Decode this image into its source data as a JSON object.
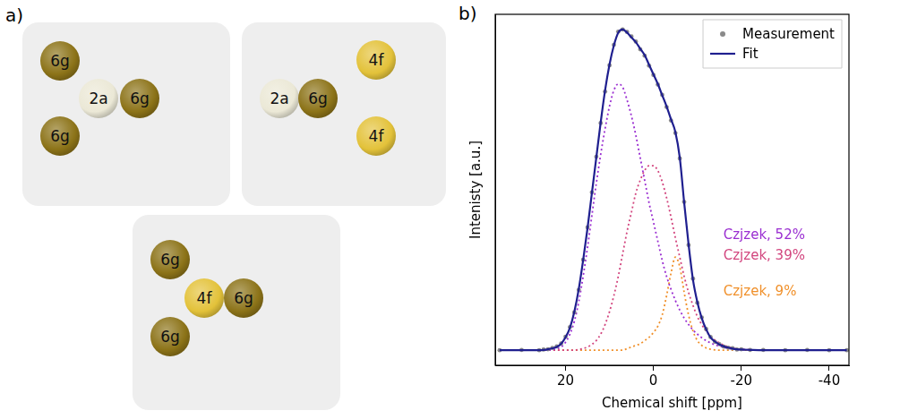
{
  "panel_a": {
    "label": "a)",
    "clusters": [
      {
        "atoms": [
          {
            "label": "6g",
            "color": "#8c7318"
          },
          {
            "label": "2a",
            "color": "#ebe8d6"
          },
          {
            "label": "6g",
            "color": "#8c7318"
          },
          {
            "label": "6g",
            "color": "#8c7318"
          }
        ]
      },
      {
        "atoms": [
          {
            "label": "4f",
            "color": "#e3c23a"
          },
          {
            "label": "2a",
            "color": "#ebe8d6"
          },
          {
            "label": "6g",
            "color": "#8c7318"
          },
          {
            "label": "4f",
            "color": "#e3c23a"
          }
        ]
      },
      {
        "atoms": [
          {
            "label": "6g",
            "color": "#8c7318"
          },
          {
            "label": "4f",
            "color": "#e3c23a"
          },
          {
            "label": "6g",
            "color": "#8c7318"
          },
          {
            "label": "6g",
            "color": "#8c7318"
          }
        ]
      }
    ]
  },
  "chart_data": {
    "type": "line",
    "label": "b)",
    "x_label": "Chemical shift [ppm]",
    "y_label": "Intenisty [a.u.]",
    "x": [
      35,
      30,
      26,
      25,
      24,
      23,
      22,
      21,
      20,
      19,
      18,
      17,
      16,
      15,
      14,
      13,
      12,
      11,
      10,
      9,
      8,
      7,
      6,
      5,
      4,
      3,
      2,
      1,
      0,
      -1,
      -2,
      -3,
      -4,
      -5,
      -6,
      -7,
      -8,
      -9,
      -10,
      -11,
      -12,
      -13,
      -14,
      -15,
      -16,
      -17,
      -18,
      -19,
      -20,
      -22,
      -25,
      -30,
      -35,
      -40,
      -44
    ],
    "xlim": [
      36,
      -44.5
    ],
    "xticks": [
      20,
      0,
      -20,
      -40
    ],
    "ylim": [
      -0.047,
      1.047
    ],
    "tick_labels": "x",
    "grid": false,
    "legend": "upper right",
    "series": [
      {
        "name": "Measurement",
        "color": "#8a8a8a",
        "marker": "circle",
        "line_style": "none",
        "values": [
          0,
          0.001,
          0,
          0.002,
          0.003,
          0.007,
          0.012,
          0.021,
          0.042,
          0.072,
          0.118,
          0.188,
          0.282,
          0.383,
          0.492,
          0.603,
          0.708,
          0.806,
          0.888,
          0.952,
          0.993,
          1.0,
          0.992,
          0.978,
          0.962,
          0.938,
          0.918,
          0.887,
          0.858,
          0.828,
          0.796,
          0.758,
          0.716,
          0.677,
          0.598,
          0.462,
          0.328,
          0.223,
          0.148,
          0.102,
          0.066,
          0.041,
          0.026,
          0.019,
          0.011,
          0.008,
          0.006,
          0.002,
          0.003,
          0.001,
          0.001,
          0,
          0.001,
          0,
          0
        ]
      },
      {
        "name": "Fit",
        "color": "#1f1f8f",
        "line_style": "solid",
        "values": [
          0,
          0,
          0,
          0.001,
          0.003,
          0.006,
          0.01,
          0.02,
          0.04,
          0.07,
          0.12,
          0.19,
          0.28,
          0.38,
          0.49,
          0.6,
          0.71,
          0.81,
          0.89,
          0.95,
          0.99,
          1.0,
          0.99,
          0.975,
          0.96,
          0.94,
          0.92,
          0.89,
          0.86,
          0.83,
          0.795,
          0.76,
          0.72,
          0.68,
          0.6,
          0.46,
          0.33,
          0.22,
          0.15,
          0.1,
          0.065,
          0.04,
          0.027,
          0.018,
          0.012,
          0.008,
          0.005,
          0.003,
          0.002,
          0.001,
          0,
          0,
          0,
          0,
          0
        ]
      }
    ],
    "components": [
      {
        "name": "Czjzek, 52%",
        "color": "#9a2ed1",
        "line_style": "dotted",
        "values": [
          0,
          0,
          0,
          0,
          0,
          0.002,
          0.005,
          0.01,
          0.025,
          0.05,
          0.09,
          0.15,
          0.23,
          0.32,
          0.42,
          0.52,
          0.61,
          0.69,
          0.76,
          0.81,
          0.83,
          0.82,
          0.78,
          0.73,
          0.67,
          0.6,
          0.53,
          0.46,
          0.4,
          0.34,
          0.28,
          0.23,
          0.19,
          0.155,
          0.125,
          0.1,
          0.08,
          0.063,
          0.05,
          0.039,
          0.03,
          0.023,
          0.017,
          0.013,
          0.009,
          0.006,
          0.004,
          0.003,
          0.002,
          0.001,
          0,
          0,
          0,
          0,
          0
        ]
      },
      {
        "name": "Czjzek, 39%",
        "color": "#d2457e",
        "line_style": "dotted",
        "values": [
          0,
          0,
          0,
          0,
          0,
          0,
          0,
          0,
          0,
          0,
          0,
          0.002,
          0.005,
          0.01,
          0.018,
          0.03,
          0.05,
          0.08,
          0.12,
          0.17,
          0.23,
          0.3,
          0.37,
          0.43,
          0.49,
          0.53,
          0.56,
          0.575,
          0.575,
          0.56,
          0.525,
          0.475,
          0.415,
          0.35,
          0.29,
          0.23,
          0.18,
          0.14,
          0.105,
          0.08,
          0.06,
          0.044,
          0.032,
          0.023,
          0.016,
          0.011,
          0.007,
          0.004,
          0.003,
          0.001,
          0,
          0,
          0,
          0,
          0
        ]
      },
      {
        "name": "Czjzek, 9%",
        "color": "#f0902a",
        "line_style": "dotted",
        "values": [
          0,
          0,
          0,
          0,
          0,
          0,
          0,
          0,
          0,
          0,
          0,
          0,
          0,
          0,
          0,
          0,
          0,
          0,
          0,
          0,
          0,
          0,
          0.005,
          0.01,
          0.015,
          0.02,
          0.03,
          0.04,
          0.055,
          0.075,
          0.11,
          0.17,
          0.24,
          0.29,
          0.26,
          0.18,
          0.11,
          0.06,
          0.03,
          0.015,
          0.007,
          0.003,
          0.001,
          0,
          0,
          0,
          0,
          0,
          0,
          0,
          0,
          0,
          0,
          0,
          0
        ]
      }
    ]
  }
}
